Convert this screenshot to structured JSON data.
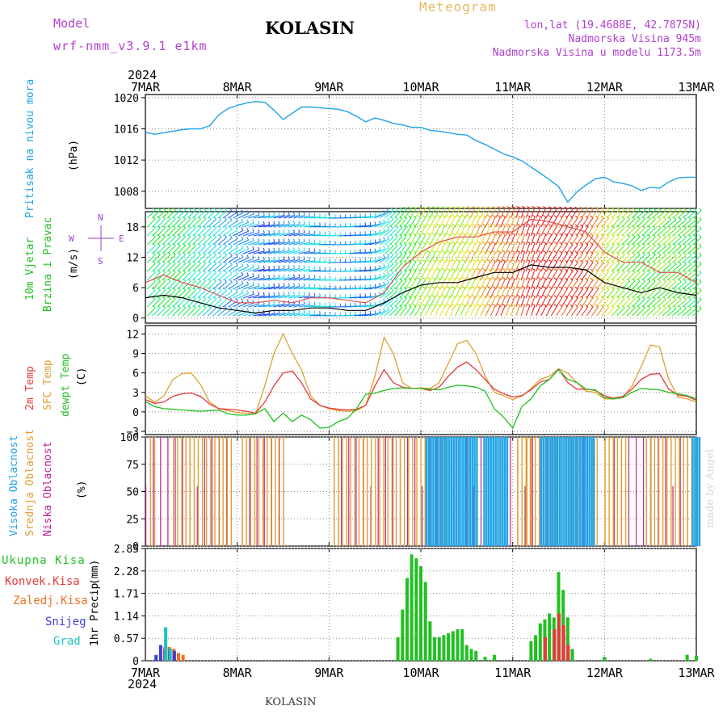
{
  "header": {
    "model_label": "Model",
    "model_name": "wrf-nmm_v3.9.1 e1km",
    "title": "KOLASIN",
    "meteogram_label": "Meteogram",
    "lonlat": "lon,lat (19.4688E, 42.7875N)",
    "altitude": "Nadmorska Visina 945m",
    "model_altitude": "Nadmorska Visina u modelu 1173.5m"
  },
  "x_axis": {
    "year": "2024",
    "ticks": [
      "7MAR",
      "8MAR",
      "9MAR",
      "10MAR",
      "11MAR",
      "12MAR",
      "13MAR"
    ]
  },
  "footer": {
    "location": "KOLASIN",
    "credit": "made by Angel"
  },
  "colors": {
    "pressure": "#1fa3e8",
    "temp2m": "#e8383a",
    "tsfc": "#e0a030",
    "dew": "#22c022",
    "high_cloud": "#1fa3e8",
    "mid_cloud": "#e0a030",
    "low_cloud": "#c02090",
    "total_precip": "#22c022",
    "conv_precip": "#e8383a",
    "frz_precip": "#f07020",
    "snow": "#4040d0",
    "graupel": "#20c0c0",
    "wind_label": "#22c022",
    "compass": "#a040d0"
  },
  "chart_data": [
    {
      "type": "line",
      "panel": "pressure",
      "ylabel": "Pritisak na nivou mora",
      "unit": "(hPa)",
      "yticks": [
        "1020",
        "1016",
        "1012",
        "1008"
      ],
      "ylim": [
        1005.8,
        1020.4
      ],
      "x_days": [
        0,
        0.1,
        0.2,
        0.3,
        0.4,
        0.5,
        0.6,
        0.7,
        0.8,
        0.9,
        1.0,
        1.1,
        1.2,
        1.3,
        1.4,
        1.5,
        1.6,
        1.7,
        1.8,
        1.9,
        2.0,
        2.1,
        2.2,
        2.3,
        2.4,
        2.5,
        2.6,
        2.7,
        2.8,
        2.9,
        3.0,
        3.1,
        3.2,
        3.3,
        3.4,
        3.5,
        3.6,
        3.7,
        3.8,
        3.9,
        4.0,
        4.1,
        4.2,
        4.3,
        4.4,
        4.5,
        4.6,
        4.7,
        4.8,
        4.9,
        5.0,
        5.1,
        5.2,
        5.3,
        5.4,
        5.5,
        5.6,
        5.7,
        5.8,
        5.9,
        6.0
      ],
      "values": [
        1015.6,
        1015.3,
        1015.5,
        1015.7,
        1015.9,
        1016.0,
        1016.0,
        1016.4,
        1017.8,
        1018.6,
        1019.0,
        1019.3,
        1019.5,
        1019.4,
        1018.4,
        1017.2,
        1018.0,
        1018.8,
        1018.8,
        1018.7,
        1018.6,
        1018.5,
        1018.2,
        1017.6,
        1016.9,
        1017.4,
        1017.1,
        1016.7,
        1016.5,
        1016.2,
        1016.2,
        1015.8,
        1015.7,
        1015.5,
        1015.3,
        1015.2,
        1014.5,
        1014.0,
        1013.4,
        1012.8,
        1012.4,
        1011.9,
        1011.1,
        1010.3,
        1009.5,
        1008.6,
        1006.6,
        1007.9,
        1008.8,
        1009.6,
        1009.8,
        1009.2,
        1009.0,
        1008.7,
        1008.1,
        1008.5,
        1008.4,
        1009.2,
        1009.7,
        1009.8,
        1009.8
      ]
    },
    {
      "type": "wind",
      "panel": "wind",
      "ylabel": "10m Vjetar",
      "ylabel2": "Brzina i Pravac",
      "unit": "(m/s)",
      "yticks": [
        "18",
        "12",
        "6",
        "0"
      ],
      "ylim": [
        -1,
        21
      ],
      "compass": {
        "n": "N",
        "s": "S",
        "e": "E",
        "w": "W"
      },
      "x_days": [
        0,
        0.2,
        0.4,
        0.6,
        0.8,
        1.0,
        1.2,
        1.4,
        1.6,
        1.8,
        2.0,
        2.2,
        2.4,
        2.6,
        2.8,
        3.0,
        3.2,
        3.4,
        3.6,
        3.8,
        4.0,
        4.2,
        4.4,
        4.6,
        4.8,
        5.0,
        5.2,
        5.4,
        5.6,
        5.8,
        6.0
      ],
      "speed": [
        4,
        4.5,
        4,
        3,
        2,
        1.5,
        1,
        1.5,
        1.5,
        2,
        2,
        1.5,
        1.5,
        3,
        5,
        6.5,
        7,
        7,
        8,
        9,
        9,
        10.5,
        10,
        10,
        9.5,
        7,
        6,
        5,
        6,
        5,
        4.5
      ],
      "gust": [
        7,
        8.5,
        7,
        6,
        4.5,
        3,
        3,
        3.5,
        3,
        4,
        4,
        3.5,
        3,
        5,
        10,
        13,
        15,
        16,
        16,
        17,
        17,
        19.5,
        19,
        18,
        17,
        13,
        11,
        11,
        9,
        9,
        7
      ],
      "dir_deg": [
        225,
        225,
        225,
        225,
        230,
        245,
        260,
        255,
        255,
        265,
        270,
        265,
        260,
        230,
        215,
        210,
        205,
        205,
        205,
        205,
        200,
        200,
        210,
        215,
        215,
        220,
        225,
        225,
        230,
        230,
        230
      ]
    },
    {
      "type": "line",
      "panel": "temperature",
      "ylabel": "2m Temp",
      "ylabel2": "SFC Temp",
      "ylabel3": "dewpt Temp",
      "unit": "(C)",
      "yticks": [
        "12",
        "9",
        "6",
        "3",
        "0",
        "−3"
      ],
      "ylim": [
        -3.5,
        13.3
      ],
      "x_days": [
        0,
        0.1,
        0.2,
        0.3,
        0.4,
        0.5,
        0.6,
        0.7,
        0.8,
        0.9,
        1.0,
        1.1,
        1.2,
        1.3,
        1.4,
        1.5,
        1.6,
        1.7,
        1.8,
        1.9,
        2.0,
        2.1,
        2.2,
        2.3,
        2.4,
        2.5,
        2.6,
        2.7,
        2.8,
        2.9,
        3.0,
        3.1,
        3.2,
        3.3,
        3.4,
        3.5,
        3.6,
        3.7,
        3.8,
        3.9,
        4.0,
        4.1,
        4.2,
        4.3,
        4.4,
        4.5,
        4.6,
        4.7,
        4.8,
        4.9,
        5.0,
        5.1,
        5.2,
        5.3,
        5.4,
        5.5,
        5.6,
        5.7,
        5.8,
        5.9,
        6.0
      ],
      "series": [
        {
          "name": "2m Temp",
          "values": [
            1.9,
            1.3,
            1.5,
            2.4,
            2.8,
            2.9,
            2.4,
            1.2,
            0.5,
            0.4,
            0.3,
            0.1,
            -0.2,
            1.5,
            4.0,
            6.0,
            6.3,
            4.5,
            2.0,
            1.0,
            0.6,
            0.4,
            0.3,
            0.4,
            1.0,
            4.0,
            6.5,
            4.5,
            3.8,
            3.6,
            3.6,
            3.3,
            3.8,
            5.5,
            6.9,
            7.7,
            6.5,
            5.0,
            3.5,
            2.8,
            2.3,
            2.5,
            3.4,
            4.6,
            5.0,
            6.6,
            4.5,
            3.5,
            3.5,
            3.3,
            2.5,
            2.1,
            2.4,
            3.5,
            5.0,
            5.8,
            5.9,
            3.5,
            2.6,
            2.4,
            1.8
          ]
        },
        {
          "name": "SFC Temp",
          "values": [
            2.5,
            1.5,
            2.4,
            5.0,
            5.9,
            6.0,
            4.2,
            1.5,
            0.5,
            0.2,
            -0.1,
            -0.2,
            -0.3,
            4.0,
            9.0,
            12.0,
            9.0,
            6.5,
            2.5,
            1.0,
            0.5,
            0.2,
            0.1,
            0.2,
            1.0,
            5.5,
            11.5,
            9.0,
            4.5,
            3.6,
            3.7,
            3.6,
            4.5,
            7.5,
            10.5,
            11.0,
            9.0,
            5.5,
            3.0,
            2.5,
            1.9,
            2.4,
            3.6,
            5.0,
            5.5,
            6.6,
            6.0,
            4.5,
            3.2,
            3.0,
            2.0,
            2.0,
            2.2,
            4.0,
            7.0,
            10.3,
            10.0,
            5.0,
            2.3,
            2.0,
            1.5
          ]
        },
        {
          "name": "dewpt Temp",
          "values": [
            1.6,
            0.8,
            0.5,
            0.4,
            0.3,
            0.2,
            0.1,
            0.2,
            0.3,
            -0.3,
            -0.5,
            -0.5,
            -0.3,
            0.5,
            -1.5,
            -0.2,
            -1.5,
            -0.5,
            -1.2,
            -2.5,
            -2.4,
            -1.5,
            -1.0,
            0.5,
            2.7,
            2.9,
            3.3,
            3.6,
            3.7,
            3.6,
            3.6,
            3.5,
            3.4,
            3.8,
            4.1,
            4.0,
            3.8,
            3.2,
            0.5,
            -0.8,
            -2.5,
            0.8,
            2.0,
            4.0,
            5.0,
            6.5,
            5.0,
            4.5,
            3.5,
            3.4,
            2.2,
            2.0,
            2.2,
            3.0,
            3.6,
            3.5,
            3.4,
            3.0,
            2.8,
            2.5,
            2.0
          ]
        }
      ]
    },
    {
      "type": "bar",
      "panel": "clouds",
      "ylabel": "Visoka Oblacnost",
      "ylabel2": "Srednja Oblacnost",
      "ylabel3": "Niska Oblacnost",
      "unit": "(%)",
      "yticks": [
        "100",
        "75",
        "50",
        "25",
        "0"
      ],
      "ylim": [
        0,
        100
      ],
      "series": [
        {
          "name": "Visoka Oblacnost",
          "ranges": [
            [
              3.05,
              3.6
            ],
            [
              3.68,
              3.95
            ],
            [
              4.3,
              4.9
            ],
            [
              5.95,
              6.05
            ]
          ],
          "level": 100
        },
        {
          "name": "Srednja Oblacnost",
          "ranges": [
            [
              0.05,
              0.1
            ],
            [
              0.3,
              0.95
            ],
            [
              1.05,
              1.5
            ],
            [
              2.05,
              3.3
            ],
            [
              4.05,
              4.2
            ],
            [
              4.15,
              4.95
            ],
            [
              5.0,
              5.25
            ],
            [
              5.45,
              6.0
            ]
          ],
          "level": 100
        },
        {
          "name": "Niska Oblacnost",
          "ranges": [
            [
              0.0,
              0.9
            ],
            [
              1.05,
              1.5
            ],
            [
              2.05,
              4.8
            ],
            [
              5.1,
              6.0
            ]
          ],
          "level": 100
        }
      ]
    },
    {
      "type": "bar",
      "panel": "precipitation",
      "ylabel": "1hr Precip",
      "unit": "(mm)",
      "yticks": [
        "2.85",
        "2.28",
        "1.71",
        "1.14",
        "0.57",
        "0"
      ],
      "ylim": [
        0,
        2.85
      ],
      "legend": [
        "Ukupna Kisa",
        "Konvek.Kisa",
        "Zaledj.Kisa",
        "Snijeg",
        "Grad"
      ],
      "series": [
        {
          "name": "Ukupna Kisa",
          "x_days": [
            2.75,
            2.8,
            2.85,
            2.9,
            2.95,
            3.0,
            3.05,
            3.1,
            3.15,
            3.2,
            3.25,
            3.3,
            3.35,
            3.4,
            3.45,
            3.5,
            3.55,
            3.6,
            3.7,
            3.8,
            4.2,
            4.25,
            4.3,
            4.35,
            4.4,
            4.45,
            4.5,
            4.55,
            4.6,
            4.65,
            5.0,
            5.5,
            5.9,
            6.0
          ],
          "values": [
            0.6,
            1.3,
            2.1,
            2.7,
            2.6,
            2.4,
            2.0,
            1.0,
            0.6,
            0.6,
            0.65,
            0.7,
            0.75,
            0.8,
            0.8,
            0.4,
            0.3,
            0.25,
            0.1,
            0.15,
            0.5,
            0.65,
            0.95,
            1.05,
            1.2,
            1.1,
            2.25,
            1.8,
            1.1,
            0.3,
            0.1,
            0.05,
            0.15,
            0.12
          ]
        },
        {
          "name": "Konvek.Kisa",
          "x_days": [
            4.35,
            4.45,
            4.5,
            4.55,
            4.6
          ],
          "values": [
            0.6,
            0.8,
            1.2,
            0.9,
            0.4
          ]
        },
        {
          "name": "Zaledj.Kisa",
          "x_days": [
            0.2,
            0.25,
            0.3,
            0.35,
            0.4
          ],
          "values": [
            0.3,
            0.35,
            0.3,
            0.2,
            0.15
          ]
        },
        {
          "name": "Snijeg",
          "x_days": [
            0.1,
            0.15,
            0.2,
            0.25,
            0.3
          ],
          "values": [
            0.15,
            0.4,
            0.35,
            0.3,
            0.25
          ]
        },
        {
          "name": "Grad",
          "x_days": [
            0.2,
            0.25
          ],
          "values": [
            0.85,
            0.3
          ]
        }
      ]
    }
  ]
}
